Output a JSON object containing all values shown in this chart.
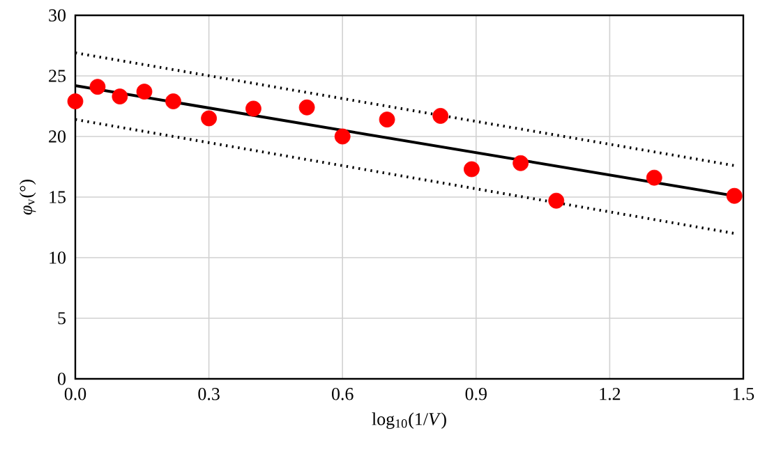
{
  "chart_data": {
    "type": "scatter",
    "xlabel": "log$_{10}$(1/*V*)",
    "ylabel": "*φ*$_{v}$(°)",
    "xlim": [
      0,
      1.5
    ],
    "ylim": [
      0,
      30
    ],
    "xticks": [
      {
        "value": 0,
        "label": "0.0"
      },
      {
        "value": 0.3,
        "label": "0.3"
      },
      {
        "value": 0.6,
        "label": "0.6"
      },
      {
        "value": 0.9,
        "label": "0.9"
      },
      {
        "value": 1.2,
        "label": "1.2"
      },
      {
        "value": 1.5,
        "label": "1.5"
      }
    ],
    "yticks": [
      0,
      5,
      10,
      15,
      20,
      25,
      30
    ],
    "grid": true,
    "series": [
      {
        "type": "line",
        "color": "#000000",
        "line_style": "dotted",
        "marker": "none",
        "x": [
          0,
          1.48
        ],
        "values": [
          26.9,
          17.6
        ]
      },
      {
        "type": "line",
        "color": "#000000",
        "line_style": "dotted",
        "marker": "none",
        "x": [
          0,
          1.48
        ],
        "values": [
          21.4,
          12.0
        ]
      },
      {
        "type": "line",
        "color": "#000000",
        "line_style": "solid",
        "marker": "none",
        "x": [
          0,
          1.48
        ],
        "values": [
          24.2,
          15.1
        ]
      },
      {
        "color": "#ff0000",
        "marker": "circle",
        "x": [
          0,
          0.05,
          0.1,
          0.155,
          0.22,
          0.3,
          0.4,
          0.52,
          0.6,
          0.7,
          0.82,
          0.89,
          1.0,
          1.08,
          1.3,
          1.48
        ],
        "values": [
          22.9,
          24.1,
          23.3,
          23.7,
          22.9,
          21.5,
          22.3,
          22.4,
          20.0,
          21.4,
          21.7,
          17.3,
          17.8,
          14.7,
          16.6,
          15.1
        ]
      }
    ]
  }
}
